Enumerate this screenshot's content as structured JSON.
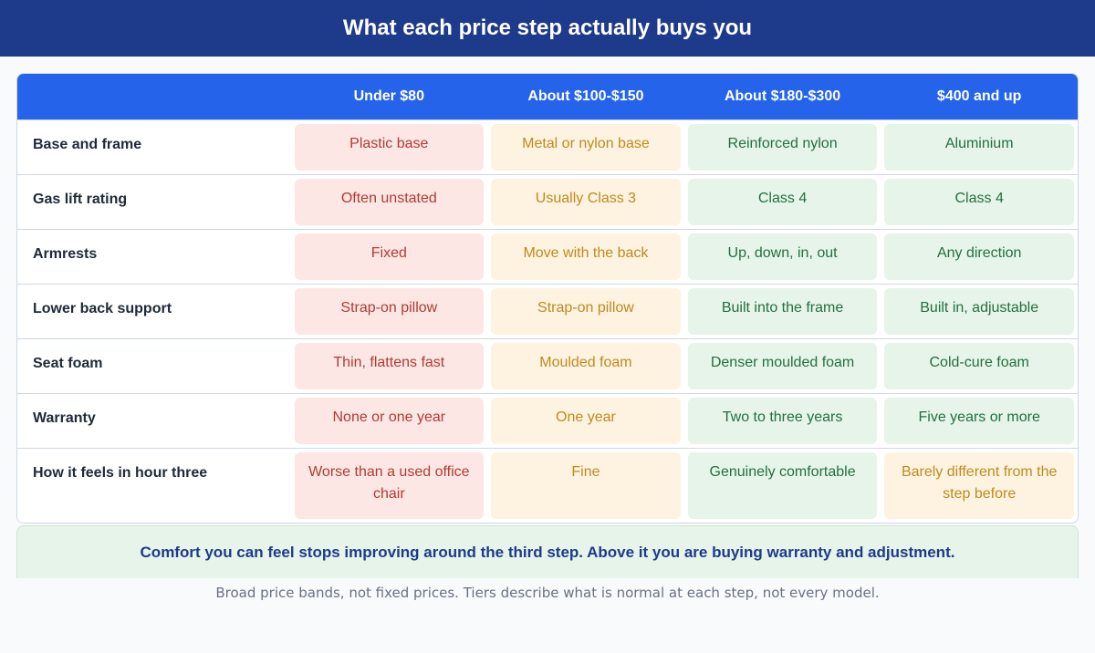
{
  "title": "What each price step actually buys you",
  "columns": [
    "Under $80",
    "About $100-$150",
    "About $180-$300",
    "$400 and up"
  ],
  "rows": [
    {
      "label": "Base and frame",
      "cells": [
        {
          "text": "Plastic base",
          "tone": "red"
        },
        {
          "text": "Metal or nylon base",
          "tone": "yellow"
        },
        {
          "text": "Reinforced nylon",
          "tone": "green"
        },
        {
          "text": "Aluminium",
          "tone": "green"
        }
      ]
    },
    {
      "label": "Gas lift rating",
      "cells": [
        {
          "text": "Often unstated",
          "tone": "red"
        },
        {
          "text": "Usually Class 3",
          "tone": "yellow"
        },
        {
          "text": "Class 4",
          "tone": "green"
        },
        {
          "text": "Class 4",
          "tone": "green"
        }
      ]
    },
    {
      "label": "Armrests",
      "cells": [
        {
          "text": "Fixed",
          "tone": "red"
        },
        {
          "text": "Move with the back",
          "tone": "yellow"
        },
        {
          "text": "Up, down, in, out",
          "tone": "green"
        },
        {
          "text": "Any direction",
          "tone": "green"
        }
      ]
    },
    {
      "label": "Lower back support",
      "cells": [
        {
          "text": "Strap-on pillow",
          "tone": "red"
        },
        {
          "text": "Strap-on pillow",
          "tone": "yellow"
        },
        {
          "text": "Built into the frame",
          "tone": "green"
        },
        {
          "text": "Built in, adjustable",
          "tone": "green"
        }
      ]
    },
    {
      "label": "Seat foam",
      "cells": [
        {
          "text": "Thin, flattens fast",
          "tone": "red"
        },
        {
          "text": "Moulded foam",
          "tone": "yellow"
        },
        {
          "text": "Denser moulded foam",
          "tone": "green"
        },
        {
          "text": "Cold-cure foam",
          "tone": "green"
        }
      ]
    },
    {
      "label": "Warranty",
      "cells": [
        {
          "text": "None or one year",
          "tone": "red"
        },
        {
          "text": "One year",
          "tone": "yellow"
        },
        {
          "text": "Two to three years",
          "tone": "green"
        },
        {
          "text": "Five years or more",
          "tone": "green"
        }
      ]
    },
    {
      "label": "How it feels in hour three",
      "cells": [
        {
          "text": "Worse than a used office chair",
          "tone": "red"
        },
        {
          "text": "Fine",
          "tone": "yellow"
        },
        {
          "text": "Genuinely comfortable",
          "tone": "green"
        },
        {
          "text": "Barely different from the step before",
          "tone": "yellow"
        }
      ]
    }
  ],
  "callout": "Comfort you can feel stops improving around the third step. Above it you are buying warranty and adjustment.",
  "footnote": "Broad price bands, not fixed prices. Tiers describe what is normal at each step, not every model.",
  "colors": {
    "header_bar": "#1e3a8a",
    "column_header": "#2563eb",
    "tone_red_bg": "#fce7e4",
    "tone_yellow_bg": "#fdf3e0",
    "tone_green_bg": "#e6f4ea"
  }
}
